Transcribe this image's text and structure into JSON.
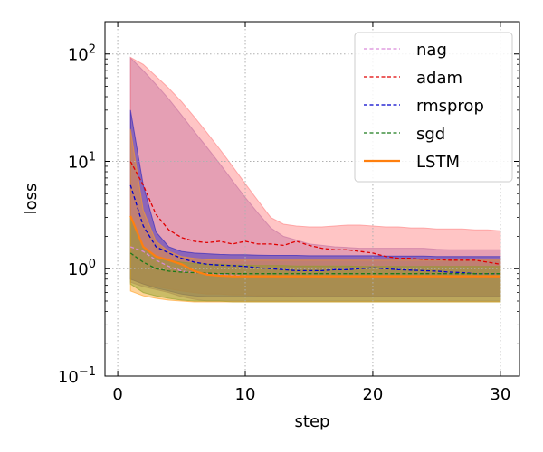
{
  "chart_data": {
    "type": "line",
    "xlabel": "step",
    "ylabel": "loss",
    "x_scale": "linear",
    "y_scale": "log",
    "xlim": [
      -1,
      31.5
    ],
    "ylim": [
      0.1,
      200
    ],
    "x_ticks": [
      0,
      10,
      20,
      30
    ],
    "x_tick_labels": [
      "0",
      "10",
      "20",
      "30"
    ],
    "y_ticks": [
      {
        "value": 0.1,
        "base": "10",
        "exp": "−1"
      },
      {
        "value": 1,
        "base": "10",
        "exp": "0"
      },
      {
        "value": 10,
        "base": "10",
        "exp": "1"
      },
      {
        "value": 100,
        "base": "10",
        "exp": "2"
      }
    ],
    "grid": true,
    "legend_position": "top-right",
    "x": [
      1,
      2,
      3,
      4,
      5,
      6,
      7,
      8,
      9,
      10,
      11,
      12,
      13,
      14,
      15,
      16,
      17,
      18,
      19,
      20,
      21,
      22,
      23,
      24,
      25,
      26,
      27,
      28,
      29,
      30
    ],
    "bands": [
      {
        "series": "nag",
        "color": "#9467bd",
        "upper": [
          92,
          70,
          52,
          38,
          27,
          19,
          13.5,
          9.5,
          6.6,
          4.6,
          3.3,
          2.4,
          2.0,
          1.85,
          1.7,
          1.65,
          1.6,
          1.58,
          1.55,
          1.55,
          1.55,
          1.55,
          1.55,
          1.55,
          1.52,
          1.5,
          1.5,
          1.5,
          1.5,
          1.5
        ],
        "lower": [
          0.75,
          0.68,
          0.64,
          0.6,
          0.55,
          0.52,
          0.5,
          0.5,
          0.5,
          0.5,
          0.5,
          0.5,
          0.5,
          0.5,
          0.5,
          0.5,
          0.5,
          0.5,
          0.5,
          0.5,
          0.5,
          0.5,
          0.5,
          0.5,
          0.5,
          0.5,
          0.5,
          0.5,
          0.5,
          0.5
        ]
      },
      {
        "series": "adam",
        "color": "#ff7f7f",
        "upper": [
          93,
          80,
          62,
          48,
          36,
          26,
          18.5,
          13,
          9,
          6.2,
          4.3,
          3.0,
          2.6,
          2.5,
          2.45,
          2.45,
          2.5,
          2.55,
          2.55,
          2.5,
          2.45,
          2.45,
          2.4,
          2.4,
          2.35,
          2.35,
          2.35,
          2.3,
          2.3,
          2.25
        ],
        "lower": [
          0.8,
          0.72,
          0.68,
          0.65,
          0.62,
          0.6,
          0.58,
          0.58,
          0.57,
          0.57,
          0.56,
          0.56,
          0.56,
          0.55,
          0.55,
          0.55,
          0.55,
          0.55,
          0.55,
          0.55,
          0.55,
          0.55,
          0.55,
          0.55,
          0.55,
          0.55,
          0.55,
          0.55,
          0.55,
          0.55
        ]
      },
      {
        "series": "rmsprop",
        "color": "#1f1fbf",
        "upper": [
          30,
          6,
          2.2,
          1.6,
          1.45,
          1.4,
          1.38,
          1.36,
          1.35,
          1.35,
          1.34,
          1.33,
          1.33,
          1.33,
          1.32,
          1.32,
          1.32,
          1.32,
          1.32,
          1.32,
          1.31,
          1.31,
          1.31,
          1.31,
          1.3,
          1.3,
          1.3,
          1.3,
          1.3,
          1.3
        ],
        "lower": [
          0.8,
          0.72,
          0.66,
          0.62,
          0.58,
          0.56,
          0.55,
          0.55,
          0.55,
          0.55,
          0.55,
          0.55,
          0.55,
          0.55,
          0.55,
          0.55,
          0.55,
          0.55,
          0.55,
          0.55,
          0.55,
          0.55,
          0.55,
          0.55,
          0.55,
          0.55,
          0.55,
          0.55,
          0.55,
          0.55
        ]
      },
      {
        "series": "sgd",
        "color": "#2ca02c",
        "upper": [
          3,
          1.6,
          1.3,
          1.2,
          1.15,
          1.12,
          1.1,
          1.1,
          1.08,
          1.08,
          1.07,
          1.07,
          1.07,
          1.06,
          1.06,
          1.06,
          1.06,
          1.06,
          1.05,
          1.05,
          1.05,
          1.05,
          1.05,
          1.05,
          1.05,
          1.05,
          1.05,
          1.05,
          1.05,
          1.05
        ],
        "lower": [
          0.72,
          0.6,
          0.56,
          0.53,
          0.51,
          0.5,
          0.5,
          0.5,
          0.49,
          0.49,
          0.49,
          0.49,
          0.49,
          0.49,
          0.49,
          0.49,
          0.49,
          0.49,
          0.49,
          0.49,
          0.49,
          0.49,
          0.49,
          0.49,
          0.49,
          0.49,
          0.49,
          0.49,
          0.49,
          0.49
        ]
      },
      {
        "series": "LSTM",
        "color": "#ff9f1f",
        "upper": [
          20,
          3.5,
          1.8,
          1.45,
          1.3,
          1.25,
          1.22,
          1.2,
          1.2,
          1.2,
          1.2,
          1.2,
          1.2,
          1.2,
          1.2,
          1.2,
          1.2,
          1.2,
          1.2,
          1.2,
          1.2,
          1.2,
          1.2,
          1.2,
          1.2,
          1.2,
          1.2,
          1.2,
          1.2,
          1.2
        ],
        "lower": [
          0.62,
          0.56,
          0.53,
          0.51,
          0.5,
          0.49,
          0.49,
          0.49,
          0.49,
          0.49,
          0.49,
          0.49,
          0.49,
          0.49,
          0.49,
          0.49,
          0.49,
          0.49,
          0.49,
          0.49,
          0.49,
          0.49,
          0.49,
          0.49,
          0.49,
          0.49,
          0.49,
          0.49,
          0.49,
          0.49
        ]
      }
    ],
    "series": [
      {
        "name": "nag",
        "color": "#d98ad9",
        "dashed": true,
        "values": [
          1.6,
          1.45,
          1.2,
          1.05,
          0.95,
          0.92,
          0.9,
          0.88,
          0.87,
          0.86,
          0.85,
          0.85,
          0.85,
          0.85,
          0.85,
          0.85,
          0.85,
          0.85,
          0.85,
          0.85,
          0.85,
          0.85,
          0.85,
          0.85,
          0.85,
          0.85,
          0.85,
          0.85,
          0.85,
          0.85
        ]
      },
      {
        "name": "adam",
        "color": "#e00000",
        "dashed": true,
        "values": [
          10,
          6,
          3.2,
          2.3,
          1.95,
          1.8,
          1.75,
          1.8,
          1.7,
          1.8,
          1.7,
          1.7,
          1.65,
          1.8,
          1.65,
          1.55,
          1.5,
          1.5,
          1.45,
          1.4,
          1.3,
          1.25,
          1.25,
          1.22,
          1.22,
          1.2,
          1.2,
          1.2,
          1.15,
          1.1
        ]
      },
      {
        "name": "rmsprop",
        "color": "#0000cc",
        "dashed": true,
        "values": [
          6,
          2.5,
          1.6,
          1.4,
          1.25,
          1.15,
          1.1,
          1.08,
          1.07,
          1.05,
          1.02,
          1.0,
          0.98,
          0.96,
          0.96,
          0.96,
          0.98,
          0.98,
          1.0,
          1.02,
          1.0,
          0.98,
          0.97,
          0.96,
          0.95,
          0.93,
          0.92,
          0.9,
          0.9,
          0.9
        ]
      },
      {
        "name": "sgd",
        "color": "#1a7a1a",
        "dashed": true,
        "values": [
          1.4,
          1.15,
          1.0,
          0.95,
          0.93,
          0.92,
          0.91,
          0.9,
          0.9,
          0.9,
          0.9,
          0.9,
          0.9,
          0.9,
          0.9,
          0.9,
          0.9,
          0.9,
          0.9,
          0.9,
          0.9,
          0.9,
          0.9,
          0.9,
          0.9,
          0.9,
          0.9,
          0.9,
          0.9,
          0.9
        ]
      },
      {
        "name": "LSTM",
        "color": "#ff7f0e",
        "dashed": false,
        "values": [
          3.1,
          1.6,
          1.3,
          1.2,
          1.1,
          0.95,
          0.88,
          0.86,
          0.85,
          0.85,
          0.85,
          0.85,
          0.85,
          0.85,
          0.85,
          0.85,
          0.85,
          0.85,
          0.85,
          0.85,
          0.85,
          0.85,
          0.85,
          0.85,
          0.85,
          0.85,
          0.85,
          0.85,
          0.85,
          0.85
        ]
      }
    ]
  }
}
